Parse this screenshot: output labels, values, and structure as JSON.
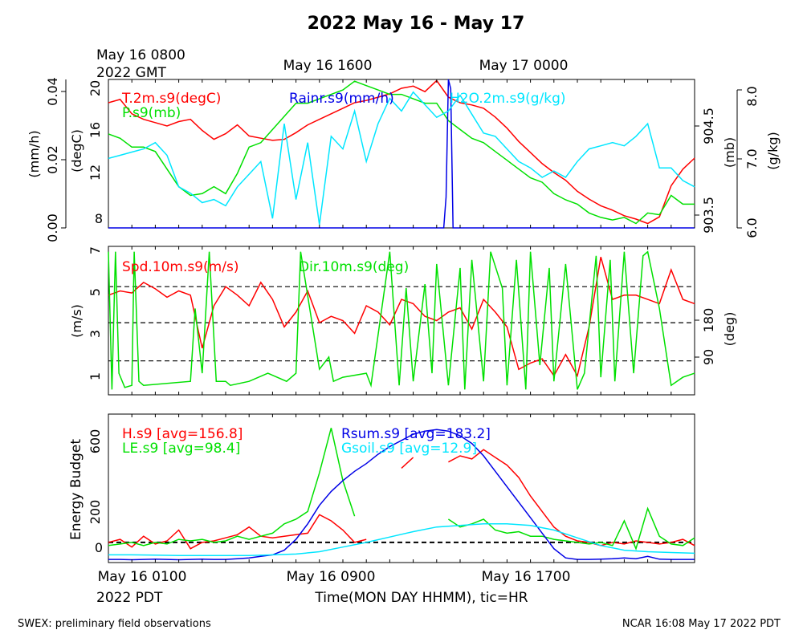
{
  "title": "2022 May 16 - May 17",
  "footer": {
    "left": "SWEX: preliminary field observations",
    "right": "NCAR 16:08 May 17 2022 PDT"
  },
  "gmt_axis": {
    "start_line1": "May 16 0800",
    "start_line2": "2022 GMT",
    "tick2": "May 16 1600",
    "tick3": "May 17 0000"
  },
  "pdt_axis": {
    "tick1": "May 16 0100",
    "tick1_line2": "2022 PDT",
    "tick2": "May 16 0900",
    "tick3": "May 16 1700",
    "xlabel": "Time(MON DAY HHMM), tic=HR"
  },
  "colors": {
    "red": "#ff0000",
    "green": "#00e000",
    "blue": "#0000e6",
    "cyan": "#00e6ff"
  },
  "panel1": {
    "labels": {
      "t2m": "T.2m.s9(degC)",
      "ps": "P.s9(mb)",
      "rain": "Rainr.s9(mm/h)",
      "h2o": "H2O.2m.s9(g/kg)"
    },
    "axis_labels": {
      "rain": "(mm/h)",
      "temp": "(degC)",
      "pres": "(mb)",
      "h2o": "(g/kg)"
    },
    "rain_ticks": [
      "0.00",
      "0.02",
      "0.04"
    ],
    "temp_ticks": [
      "8",
      "12",
      "16",
      "20"
    ],
    "pres_ticks": [
      "903.5",
      "904.5"
    ],
    "h2o_ticks": [
      "6.0",
      "7.0",
      "8.0"
    ]
  },
  "panel2": {
    "labels": {
      "spd": "Spd.10m.s9(m/s)",
      "dir": "Dir.10m.s9(deg)"
    },
    "axis_labels": {
      "spd": "(m/s)",
      "dir": "(deg)"
    },
    "spd_ticks": [
      "1",
      "3",
      "5",
      "7"
    ],
    "dir_ticks": [
      "90",
      "180"
    ]
  },
  "panel3": {
    "labels": {
      "h": "H.s9 [avg=156.8]",
      "le": "LE.s9 [avg=98.4]",
      "rsum": "Rsum.s9 [avg=183.2]",
      "gsoil": "Gsoil.s9 [avg=12.9]"
    },
    "ylabel": "Energy Budget",
    "ticks": [
      "0",
      "200",
      "600"
    ]
  },
  "chart_data": [
    {
      "type": "line",
      "title": "2022 May 16 - May 17",
      "x_unit": "hours since May 16 0100 PDT",
      "xlim": [
        0,
        25
      ],
      "series": [
        {
          "name": "T.2m.s9(degC)",
          "axis": "degC",
          "ylim": [
            7.2,
            20.6
          ],
          "x": [
            0,
            0.5,
            1,
            1.5,
            2,
            2.5,
            3,
            3.5,
            4,
            4.5,
            5,
            5.5,
            6,
            6.5,
            7,
            7.5,
            8,
            8.5,
            9,
            9.5,
            10,
            10.5,
            11,
            11.5,
            12,
            12.5,
            13,
            13.5,
            14,
            14.5,
            15,
            15.5,
            16,
            16.5,
            17,
            17.5,
            18,
            18.5,
            19,
            19.5,
            20,
            20.5,
            21,
            21.5,
            22,
            22.5,
            23,
            23.5,
            24,
            24.5,
            25
          ],
          "y": [
            18.5,
            18.8,
            17.5,
            17.0,
            16.7,
            16.4,
            16.8,
            17.0,
            16.0,
            15.2,
            15.7,
            16.5,
            15.5,
            15.3,
            15.1,
            15.2,
            15.8,
            16.5,
            17.0,
            17.5,
            18.0,
            18.5,
            18.7,
            19.0,
            19.3,
            19.8,
            20.0,
            19.5,
            20.5,
            19.0,
            18.5,
            18.3,
            18.0,
            17.2,
            16.2,
            15.0,
            14.0,
            13.0,
            12.2,
            11.5,
            10.5,
            9.8,
            9.2,
            8.8,
            8.3,
            8.0,
            7.6,
            8.2,
            11.0,
            12.5,
            13.5
          ]
        },
        {
          "name": "P.s9(mb)",
          "axis": "mb",
          "ylim": [
            903.33,
            905.02
          ],
          "x": [
            0,
            0.5,
            1,
            1.5,
            2,
            2.5,
            3,
            3.5,
            4,
            4.5,
            5,
            5.5,
            6,
            6.5,
            7,
            7.5,
            8,
            8.5,
            9,
            9.5,
            10,
            10.5,
            11,
            11.5,
            12,
            12.5,
            13,
            13.5,
            14,
            14.5,
            15,
            15.5,
            16,
            16.5,
            17,
            17.5,
            18,
            18.5,
            19,
            19.5,
            20,
            20.5,
            21,
            21.5,
            22,
            22.5,
            23,
            23.5,
            24,
            24.5,
            25
          ],
          "y": [
            904.4,
            904.35,
            904.25,
            904.25,
            904.2,
            904.0,
            903.8,
            903.7,
            903.72,
            903.8,
            903.72,
            903.95,
            904.25,
            904.3,
            904.45,
            904.6,
            904.75,
            904.75,
            904.8,
            904.85,
            904.9,
            905.0,
            904.95,
            904.9,
            904.85,
            904.85,
            904.8,
            904.75,
            904.75,
            904.55,
            904.45,
            904.35,
            904.3,
            904.2,
            904.1,
            904.0,
            903.9,
            903.85,
            903.72,
            903.65,
            903.6,
            903.5,
            903.45,
            903.42,
            903.45,
            903.38,
            903.5,
            903.48,
            903.7,
            903.6,
            903.6
          ]
        },
        {
          "name": "Rainr.s9(mm/h)",
          "axis": "mm/h",
          "ylim": [
            0,
            0.048
          ],
          "x": [
            0,
            14.3,
            14.4,
            14.5,
            14.6,
            14.7,
            25
          ],
          "y": [
            0,
            0,
            0.01,
            0.048,
            0.045,
            0,
            0
          ]
        },
        {
          "name": "H2O.2m.s9(g/kg)",
          "axis": "g/kg",
          "ylim": [
            5.95,
            8.3
          ],
          "x": [
            0,
            0.5,
            1,
            1.5,
            2,
            2.5,
            3,
            3.5,
            4,
            4.5,
            5,
            5.5,
            6,
            6.5,
            7,
            7.5,
            8,
            8.5,
            9,
            9.5,
            10,
            10.5,
            11,
            11.5,
            12,
            12.5,
            13,
            13.5,
            14,
            14.5,
            15,
            15.5,
            16,
            16.5,
            17,
            17.5,
            18,
            18.5,
            19,
            19.5,
            20,
            20.5,
            21,
            21.5,
            22,
            22.5,
            23,
            23.5,
            24,
            24.5,
            25
          ],
          "y": [
            7.05,
            7.1,
            7.15,
            7.2,
            7.3,
            7.1,
            6.6,
            6.5,
            6.35,
            6.4,
            6.3,
            6.6,
            6.8,
            7.0,
            6.1,
            7.6,
            6.4,
            7.3,
            6.0,
            7.4,
            7.2,
            7.8,
            7.0,
            7.6,
            8.0,
            7.8,
            8.1,
            7.9,
            7.7,
            7.8,
            8.05,
            7.75,
            7.45,
            7.4,
            7.2,
            7.0,
            6.9,
            6.75,
            6.85,
            6.75,
            7.0,
            7.2,
            7.25,
            7.3,
            7.25,
            7.4,
            7.6,
            6.9,
            6.9,
            6.7,
            6.6
          ]
        }
      ]
    },
    {
      "type": "line",
      "x_unit": "hours since May 16 0100 PDT",
      "xlim": [
        0,
        25
      ],
      "series": [
        {
          "name": "Spd.10m.s9(m/s)",
          "axis": "m/s",
          "ylim": [
            0.3,
            7.3
          ],
          "x": [
            0,
            0.5,
            1,
            1.5,
            2,
            2.5,
            3,
            3.5,
            4,
            4.5,
            5,
            5.5,
            6,
            6.5,
            7,
            7.5,
            8,
            8.5,
            9,
            9.5,
            10,
            10.5,
            11,
            11.5,
            12,
            12.5,
            13,
            13.5,
            14,
            14.5,
            15,
            15.5,
            16,
            16.5,
            17,
            17.5,
            18,
            18.5,
            19,
            19.5,
            20,
            20.5,
            21,
            21.5,
            22,
            22.5,
            23,
            23.5,
            24,
            24.5,
            25
          ],
          "y": [
            5.0,
            5.2,
            5.1,
            5.6,
            5.3,
            4.9,
            5.2,
            5.0,
            2.5,
            4.5,
            5.4,
            5.0,
            4.5,
            5.6,
            4.8,
            3.5,
            4.2,
            5.2,
            3.7,
            4.0,
            3.8,
            3.2,
            4.5,
            4.2,
            3.6,
            4.8,
            4.6,
            4.0,
            3.8,
            4.2,
            4.4,
            3.4,
            4.8,
            4.2,
            3.5,
            1.5,
            1.8,
            2.0,
            1.2,
            2.2,
            1.2,
            3.5,
            6.8,
            4.8,
            5.0,
            5.0,
            4.8,
            4.6,
            6.2,
            4.8,
            4.6
          ]
        },
        {
          "name": "Dir.10m.s9(deg)",
          "axis": "deg",
          "ylim": [
            -13.3,
            353.3
          ],
          "x": [
            0,
            0.15,
            0.3,
            0.45,
            0.7,
            1.0,
            1.1,
            1.3,
            1.5,
            3.5,
            3.7,
            4.0,
            4.3,
            4.6,
            5.0,
            5.2,
            6.0,
            6.8,
            7.6,
            8.0,
            8.2,
            9.0,
            9.4,
            9.6,
            10.0,
            11.0,
            11.2,
            12.0,
            12.4,
            12.7,
            13.0,
            13.5,
            13.8,
            14.0,
            14.5,
            15.0,
            15.2,
            15.5,
            16.0,
            16.3,
            16.8,
            17.0,
            17.4,
            17.8,
            18.0,
            18.4,
            18.8,
            19.0,
            19.5,
            20.0,
            20.3,
            20.8,
            21.0,
            21.4,
            21.6,
            22.0,
            22.4,
            22.8,
            23.0,
            23.5,
            24.0,
            24.5,
            25.0
          ],
          "y": [
            340,
            0,
            340,
            40,
            5,
            10,
            340,
            20,
            10,
            20,
            200,
            40,
            340,
            20,
            20,
            10,
            20,
            40,
            20,
            40,
            340,
            50,
            80,
            20,
            30,
            40,
            10,
            340,
            10,
            250,
            20,
            260,
            40,
            310,
            10,
            300,
            0,
            320,
            20,
            340,
            250,
            10,
            320,
            0,
            340,
            60,
            300,
            20,
            310,
            0,
            40,
            330,
            30,
            320,
            20,
            340,
            40,
            330,
            340,
            200,
            10,
            30,
            40
          ]
        }
      ],
      "reference_lines": [
        {
          "axis": "m/s",
          "value": 5.4
        },
        {
          "axis": "m/s",
          "value": 3.7
        },
        {
          "axis": "m/s",
          "value": 1.9
        }
      ]
    },
    {
      "type": "line",
      "x_unit": "hours since May 16 0100 PDT",
      "xlim": [
        0,
        25
      ],
      "ylim": [
        -130,
        830
      ],
      "ylabel": "Energy Budget",
      "series": [
        {
          "name": "H.s9 [avg=156.8]",
          "x": [
            0,
            0.5,
            1,
            1.5,
            2,
            2.5,
            3,
            3.5,
            4,
            4.5,
            5,
            5.5,
            6,
            6.5,
            7,
            7.5,
            8,
            8.5,
            9,
            9.5,
            10,
            10.5,
            11,
            11.5,
            12,
            12.5,
            13,
            13.5,
            14,
            14.5,
            15,
            15.5,
            16,
            16.5,
            17,
            17.5,
            18,
            18.5,
            19,
            19.5,
            20,
            20.5,
            21,
            21.5,
            22,
            22.5,
            23,
            23.5,
            24,
            24.5,
            25
          ],
          "y": [
            0,
            20,
            -30,
            40,
            -10,
            10,
            80,
            -40,
            0,
            10,
            30,
            50,
            100,
            40,
            30,
            40,
            50,
            60,
            180,
            140,
            80,
            0,
            20,
            null,
            null,
            480,
            550,
            null,
            null,
            520,
            560,
            540,
            600,
            550,
            500,
            420,
            300,
            200,
            100,
            40,
            10,
            0,
            -20,
            0,
            -10,
            10,
            0,
            -10,
            0,
            20,
            -20
          ]
        },
        {
          "name": "LE.s9 [avg=98.4]",
          "x": [
            0,
            0.5,
            1,
            1.5,
            2,
            2.5,
            3,
            3.5,
            4,
            4.5,
            5,
            5.5,
            6,
            6.5,
            7,
            7.5,
            8,
            8.5,
            9,
            9.5,
            10,
            10.5,
            11,
            11.5,
            12,
            12.5,
            13,
            13.5,
            14,
            14.5,
            15,
            15.5,
            16,
            16.5,
            17,
            17.5,
            18,
            18.5,
            19,
            19.5,
            20,
            20.5,
            21,
            21.5,
            22,
            22.5,
            23,
            23.5,
            24,
            24.5,
            25
          ],
          "y": [
            -20,
            -10,
            0,
            -20,
            0,
            -10,
            20,
            10,
            20,
            0,
            10,
            40,
            20,
            40,
            60,
            120,
            150,
            200,
            450,
            740,
            400,
            170,
            null,
            null,
            null,
            null,
            null,
            null,
            null,
            150,
            100,
            120,
            150,
            80,
            60,
            70,
            40,
            40,
            20,
            10,
            0,
            -10,
            0,
            -20,
            140,
            -40,
            220,
            40,
            -10,
            -20,
            30
          ]
        },
        {
          "name": "Rsum.s9 [avg=183.2]",
          "x": [
            0,
            0.5,
            1,
            1.5,
            2,
            2.5,
            3,
            3.5,
            4,
            4.5,
            5,
            5.5,
            6,
            6.5,
            7,
            7.5,
            8,
            8.5,
            9,
            9.5,
            10,
            10.5,
            11,
            11.5,
            12,
            12.5,
            13,
            13.5,
            14,
            14.5,
            15,
            15.5,
            16,
            16.5,
            17,
            17.5,
            18,
            18.5,
            19,
            19.5,
            20,
            20.5,
            21,
            21.5,
            22,
            22.5,
            23,
            23.5,
            24,
            24.5,
            25
          ],
          "y": [
            -110,
            -110,
            -112,
            -110,
            -108,
            -110,
            -112,
            -110,
            -108,
            -110,
            -110,
            -105,
            -100,
            -90,
            -80,
            -50,
            20,
            120,
            240,
            330,
            400,
            460,
            510,
            570,
            620,
            660,
            700,
            720,
            730,
            720,
            690,
            640,
            560,
            460,
            360,
            260,
            160,
            60,
            -40,
            -100,
            -110,
            -110,
            -108,
            -105,
            -100,
            -105,
            -90,
            -108,
            -110,
            -110,
            -110
          ]
        },
        {
          "name": "Gsoil.s9 [avg=12.9]",
          "x": [
            0,
            1,
            2,
            3,
            4,
            5,
            6,
            7,
            8,
            9,
            10,
            11,
            12,
            13,
            14,
            15,
            16,
            17,
            18,
            19,
            20,
            21,
            22,
            23,
            24,
            25
          ],
          "y": [
            -80,
            -80,
            -82,
            -85,
            -85,
            -85,
            -85,
            -80,
            -75,
            -60,
            -30,
            0,
            35,
            70,
            100,
            110,
            120,
            120,
            110,
            80,
            30,
            -20,
            -50,
            -60,
            -65,
            -70
          ]
        }
      ],
      "reference_lines": [
        {
          "value": 0
        }
      ]
    }
  ]
}
